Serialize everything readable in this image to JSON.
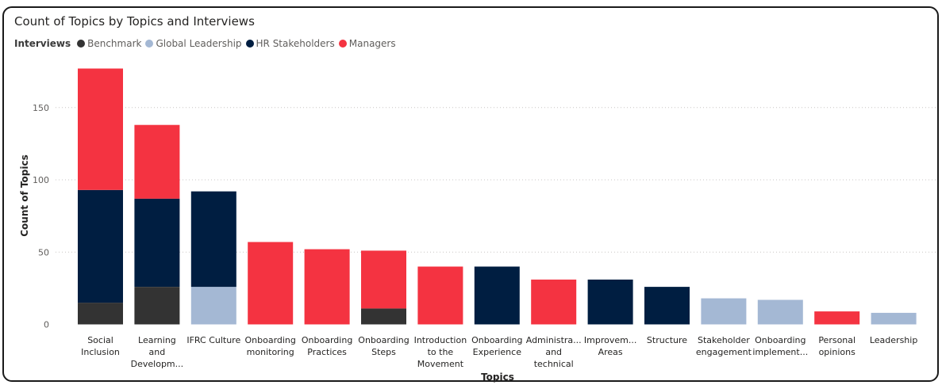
{
  "chart_data": {
    "type": "bar",
    "stacked": true,
    "title": "Count of Topics by Topics and Interviews",
    "legend_title": "Interviews",
    "legend_position": "top-left",
    "xlabel": "Topics",
    "ylabel": "Count of Topics",
    "ylim": [
      0,
      180
    ],
    "yticks": [
      0,
      50,
      100,
      150
    ],
    "grid": true,
    "categories": [
      [
        "Social",
        "Inclusion"
      ],
      [
        "Learning",
        "and",
        "Developm..."
      ],
      [
        "IFRC Culture"
      ],
      [
        "Onboarding",
        "monitoring"
      ],
      [
        "Onboarding",
        "Practices"
      ],
      [
        "Onboarding",
        "Steps"
      ],
      [
        "Introduction",
        "to the",
        "Movement"
      ],
      [
        "Onboarding",
        "Experience"
      ],
      [
        "Administra...",
        "and",
        "technical"
      ],
      [
        "Improvem...",
        "Areas"
      ],
      [
        "Structure"
      ],
      [
        "Stakeholder",
        "engagement"
      ],
      [
        "Onboarding",
        "implement..."
      ],
      [
        "Personal",
        "opinions"
      ],
      [
        "Leadership"
      ]
    ],
    "series": [
      {
        "name": "Benchmark",
        "color": "#333333",
        "values": [
          15,
          26,
          0,
          0,
          0,
          11,
          0,
          0,
          0,
          0,
          0,
          0,
          0,
          0,
          0
        ]
      },
      {
        "name": "Global Leadership",
        "color": "#a4b8d4",
        "values": [
          0,
          0,
          26,
          0,
          0,
          0,
          0,
          0,
          0,
          0,
          0,
          18,
          17,
          0,
          8
        ]
      },
      {
        "name": "HR Stakeholders",
        "color": "#001e41",
        "values": [
          78,
          61,
          66,
          0,
          0,
          0,
          0,
          40,
          0,
          31,
          26,
          0,
          0,
          0,
          0
        ]
      },
      {
        "name": "Managers",
        "color": "#f43341",
        "values": [
          84,
          51,
          0,
          57,
          52,
          40,
          40,
          0,
          31,
          0,
          0,
          0,
          0,
          9,
          0
        ]
      }
    ]
  }
}
